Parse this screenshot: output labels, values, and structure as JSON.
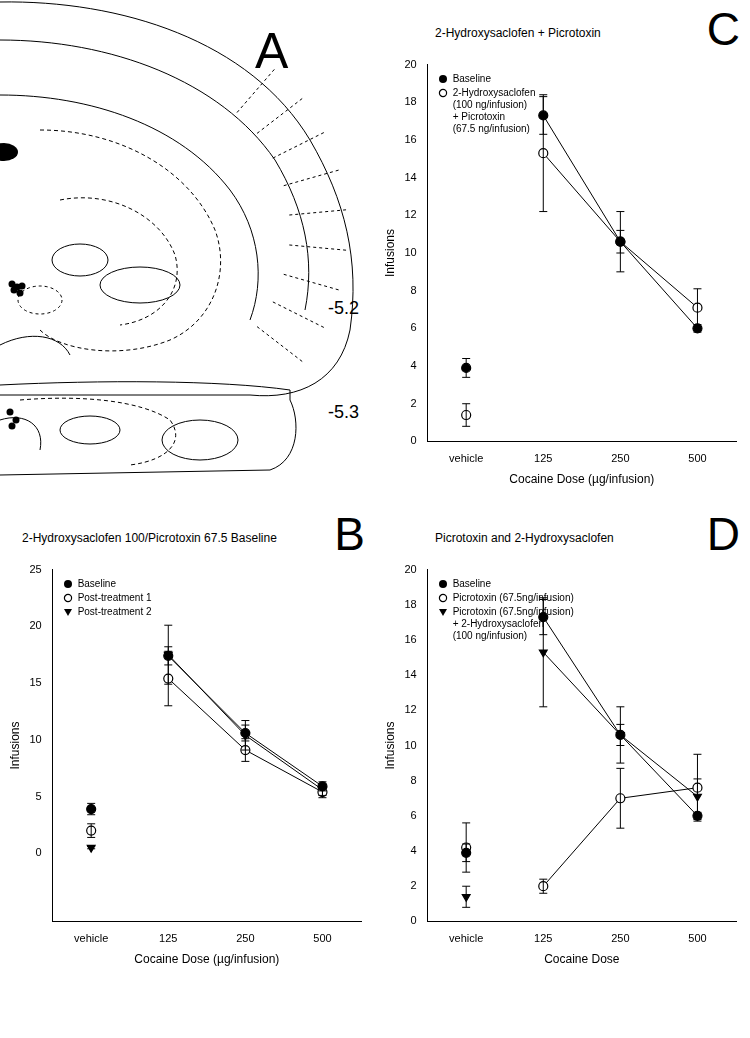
{
  "diagram": {
    "panel_label": "A",
    "section_levels": [
      "-5.2",
      "-5.3"
    ]
  },
  "chart_data": [
    {
      "panel_label": "C",
      "type": "line",
      "title": "2-Hydroxysaclofen + Picrotoxin",
      "x_label": "Cocaine Dose (µg/infusion)",
      "y_label": "Infusions",
      "categories": [
        "vehicle",
        "125",
        "250",
        "500"
      ],
      "ylim": [
        0,
        20
      ],
      "yticks": [
        0,
        2,
        4,
        6,
        8,
        10,
        12,
        14,
        16,
        18,
        20
      ],
      "grid": false,
      "legend": "upper left",
      "series": [
        {
          "name": "Baseline",
          "color": "#000000",
          "marker": "circle",
          "values": [
            3.9,
            17.3,
            10.6,
            6.0
          ],
          "errors": [
            0.5,
            1.0,
            0.6,
            0.2
          ]
        },
        {
          "name": "2-Hydroxysaclofen\n(100 ng/infusion)\n+ Picrotoxin\n(67.5 ng/infusion)",
          "color": "#000000",
          "marker": "open_circle",
          "values": [
            1.4,
            15.3,
            10.6,
            7.1
          ],
          "errors": [
            0.6,
            3.1,
            1.6,
            1.0
          ]
        }
      ]
    },
    {
      "panel_label": "B",
      "type": "line",
      "title": "2-Hydroxysaclofen 100/Picrotoxin 67.5 Baseline",
      "x_label": "Cocaine Dose (µg/infusion)",
      "y_label": "Infusions",
      "categories": [
        "vehicle",
        "125",
        "250",
        "500"
      ],
      "ylim": [
        -6,
        25
      ],
      "yticks": [
        0,
        5,
        10,
        15,
        20,
        25
      ],
      "grid": false,
      "legend": "upper left",
      "series": [
        {
          "name": "Baseline",
          "color": "#000000",
          "marker": "circle",
          "values": [
            3.9,
            17.4,
            10.6,
            5.9
          ],
          "errors": [
            0.5,
            0.8,
            0.7,
            0.4
          ]
        },
        {
          "name": "Post-treatment 1",
          "color": "#000000",
          "marker": "open_circle",
          "values": [
            2.0,
            15.4,
            9.1,
            5.4
          ],
          "errors": [
            0.6,
            2.4,
            1.0,
            0.5
          ]
        },
        {
          "name": "Post-treatment 2",
          "color": "#000000",
          "marker": "triangle_down",
          "values": [
            0.5,
            17.5,
            10.4,
            5.6
          ],
          "errors": [
            0.1,
            2.6,
            1.3,
            0.5
          ]
        }
      ]
    },
    {
      "panel_label": "D",
      "type": "line",
      "title": "Picrotoxin and 2-Hydroxysaclofen",
      "x_label": "Cocaine Dose",
      "y_label": "Infusions",
      "categories": [
        "vehicle",
        "125",
        "250",
        "500"
      ],
      "ylim": [
        0,
        20
      ],
      "yticks": [
        0,
        2,
        4,
        6,
        8,
        10,
        12,
        14,
        16,
        18,
        20
      ],
      "grid": false,
      "legend": "upper left",
      "series": [
        {
          "name": "Baseline",
          "color": "#000000",
          "marker": "circle",
          "values": [
            3.9,
            17.3,
            10.6,
            6.0
          ],
          "errors": [
            0.5,
            1.0,
            0.6,
            0.2
          ]
        },
        {
          "name": "Picrotoxin (67.5ng/infusion)",
          "color": "#000000",
          "marker": "open_circle",
          "values": [
            4.2,
            2.0,
            7.0,
            7.6
          ],
          "errors": [
            1.4,
            0.4,
            1.7,
            1.9
          ]
        },
        {
          "name": "Picrotoxin (67.5ng/infusion)\n+ 2-Hydroxysaclofen\n(100 ng/infusion)",
          "color": "#000000",
          "marker": "triangle_down",
          "values": [
            1.4,
            15.3,
            10.6,
            7.1
          ],
          "errors": [
            0.6,
            3.1,
            1.6,
            1.0
          ]
        }
      ]
    }
  ]
}
